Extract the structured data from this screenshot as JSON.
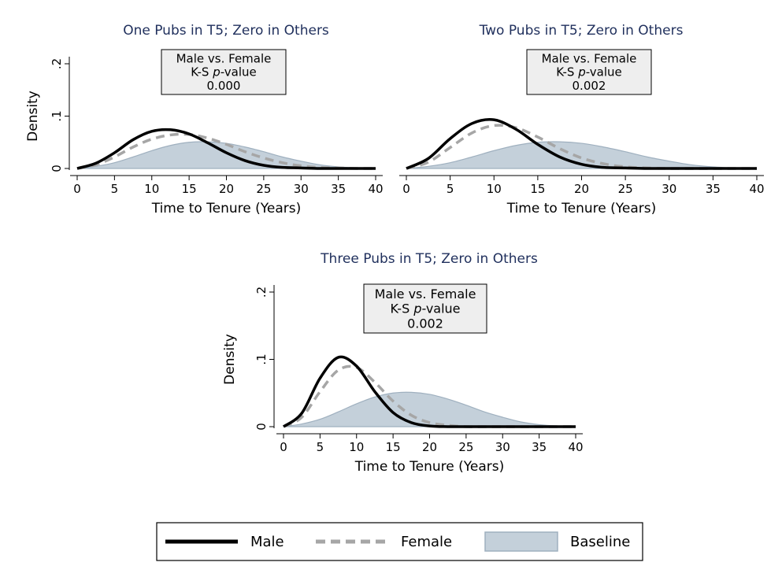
{
  "chart_data": [
    {
      "type": "area",
      "title": "One Pubs in T5; Zero in Others",
      "xlabel": "Time to Tenure (Years)",
      "ylabel": "Density",
      "xlim": [
        0,
        40
      ],
      "ylim": [
        0,
        0.2
      ],
      "xticks": [
        "0",
        "5",
        "10",
        "15",
        "20",
        "25",
        "30",
        "35",
        "40"
      ],
      "yticks": [
        "0",
        ".1",
        ".2"
      ],
      "annotation": {
        "line1": "Male vs. Female",
        "line2_prefix": "K-S ",
        "line2_italic": "p",
        "line2_suffix": "-value",
        "line3": "0.000"
      },
      "x": [
        0,
        2.5,
        5,
        7.5,
        10,
        12.5,
        15,
        17.5,
        20,
        22.5,
        25,
        27.5,
        30,
        32.5,
        35,
        37.5,
        40
      ],
      "series": [
        {
          "name": "Male",
          "values": [
            0.0,
            0.01,
            0.03,
            0.055,
            0.071,
            0.074,
            0.066,
            0.049,
            0.03,
            0.015,
            0.006,
            0.002,
            0.001,
            0.0,
            0.0,
            0.0,
            0.0
          ]
        },
        {
          "name": "Female",
          "values": [
            0.0,
            0.007,
            0.022,
            0.041,
            0.056,
            0.064,
            0.065,
            0.058,
            0.046,
            0.032,
            0.02,
            0.011,
            0.005,
            0.002,
            0.001,
            0.0,
            0.0
          ]
        },
        {
          "name": "Baseline",
          "values": [
            0.0,
            0.004,
            0.011,
            0.022,
            0.034,
            0.044,
            0.05,
            0.051,
            0.048,
            0.041,
            0.032,
            0.022,
            0.014,
            0.007,
            0.003,
            0.001,
            0.0
          ]
        }
      ]
    },
    {
      "type": "area",
      "title": "Two Pubs in T5; Zero in Others",
      "xlabel": "Time to Tenure (Years)",
      "ylabel": "",
      "xlim": [
        0,
        40
      ],
      "ylim": [
        0,
        0.2
      ],
      "xticks": [
        "0",
        "5",
        "10",
        "15",
        "20",
        "25",
        "30",
        "35",
        "40"
      ],
      "yticks": [],
      "annotation": {
        "line1": "Male vs. Female",
        "line2_prefix": "K-S ",
        "line2_italic": "p",
        "line2_suffix": "-value",
        "line3": "0.002"
      },
      "x": [
        0,
        2.5,
        5,
        7.5,
        10,
        12.5,
        15,
        17.5,
        20,
        22.5,
        25,
        27.5,
        30,
        32.5,
        35,
        37.5,
        40
      ],
      "series": [
        {
          "name": "Male",
          "values": [
            0.0,
            0.019,
            0.057,
            0.086,
            0.093,
            0.075,
            0.046,
            0.022,
            0.008,
            0.002,
            0.001,
            0.0,
            0.0,
            0.0,
            0.0,
            0.0,
            0.0
          ]
        },
        {
          "name": "Female",
          "values": [
            0.0,
            0.012,
            0.04,
            0.068,
            0.082,
            0.078,
            0.06,
            0.038,
            0.02,
            0.009,
            0.003,
            0.001,
            0.0,
            0.0,
            0.0,
            0.0,
            0.0
          ]
        },
        {
          "name": "Baseline",
          "values": [
            0.0,
            0.004,
            0.011,
            0.022,
            0.034,
            0.044,
            0.05,
            0.051,
            0.048,
            0.041,
            0.032,
            0.022,
            0.014,
            0.007,
            0.003,
            0.001,
            0.0
          ]
        }
      ]
    },
    {
      "type": "area",
      "title": "Three Pubs in T5; Zero in Others",
      "xlabel": "Time to Tenure (Years)",
      "ylabel": "Density",
      "xlim": [
        0,
        40
      ],
      "ylim": [
        0,
        0.2
      ],
      "xticks": [
        "0",
        "5",
        "10",
        "15",
        "20",
        "25",
        "30",
        "35",
        "40"
      ],
      "yticks": [
        "0",
        ".1",
        ".2"
      ],
      "annotation": {
        "line1": "Male vs. Female",
        "line2_prefix": "K-S ",
        "line2_italic": "p",
        "line2_suffix": "-value",
        "line3": "0.002"
      },
      "x": [
        0,
        2.5,
        5,
        7.5,
        10,
        12.5,
        15,
        17.5,
        20,
        22.5,
        25,
        27.5,
        30,
        32.5,
        35,
        37.5,
        40
      ],
      "series": [
        {
          "name": "Male",
          "values": [
            0.0,
            0.02,
            0.072,
            0.103,
            0.09,
            0.052,
            0.021,
            0.006,
            0.001,
            0.0,
            0.0,
            0.0,
            0.0,
            0.0,
            0.0,
            0.0,
            0.0
          ]
        },
        {
          "name": "Female",
          "values": [
            0.0,
            0.014,
            0.052,
            0.084,
            0.088,
            0.066,
            0.038,
            0.017,
            0.006,
            0.002,
            0.0,
            0.0,
            0.0,
            0.0,
            0.0,
            0.0,
            0.0
          ]
        },
        {
          "name": "Baseline",
          "values": [
            0.0,
            0.004,
            0.011,
            0.022,
            0.034,
            0.044,
            0.05,
            0.051,
            0.048,
            0.041,
            0.032,
            0.022,
            0.014,
            0.007,
            0.003,
            0.001,
            0.0
          ]
        }
      ]
    }
  ],
  "legend": {
    "items": [
      {
        "label": "Male"
      },
      {
        "label": "Female"
      },
      {
        "label": "Baseline"
      }
    ]
  },
  "colors": {
    "male": "#000000",
    "female": "#a6a6a6",
    "baseline_fill": "#c4d0da",
    "baseline_edge": "#9fb0bf",
    "title": "#1f2f5c",
    "annotation_bg": "#eeeeee"
  }
}
